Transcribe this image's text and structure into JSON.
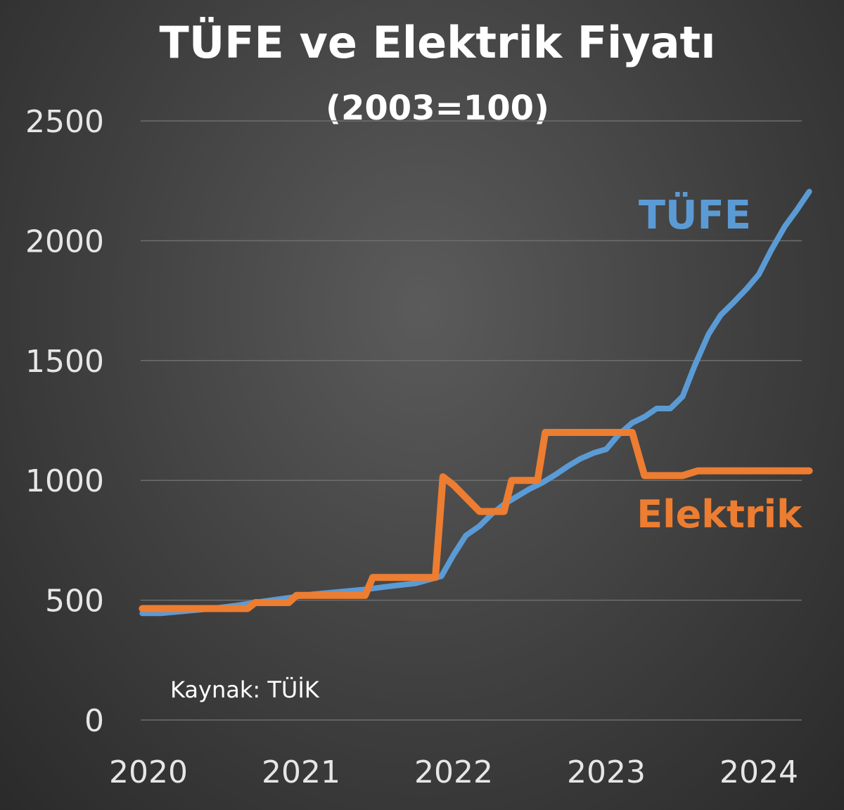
{
  "chart_data": {
    "type": "line",
    "title": "TÜFE ve Elektrik Fiyatı",
    "subtitle": "(2003=100)",
    "annotation": "Kaynak: TÜİK",
    "ylim": [
      0,
      2500
    ],
    "y_ticks": [
      "0",
      "500",
      "1000",
      "1500",
      "2000",
      "2500"
    ],
    "y_tick_values": [
      0,
      500,
      1000,
      1500,
      2000,
      2500
    ],
    "x_ticks": [
      "2020",
      "2021",
      "2022",
      "2023",
      "2024"
    ],
    "x_tick_values": [
      2020,
      2021,
      2022,
      2023,
      2024
    ],
    "xlim": [
      2019.98,
      2024.35
    ],
    "grid": true,
    "colors": {
      "tufe": "#5b9bd5",
      "elektrik": "#ed7d31",
      "grid": "#6e6e6e"
    },
    "series": [
      {
        "name": "TÜFE",
        "color": "#5b9bd5",
        "points": [
          [
            2019.96,
            445
          ],
          [
            2020.08,
            445
          ],
          [
            2020.25,
            455
          ],
          [
            2020.42,
            465
          ],
          [
            2020.58,
            478
          ],
          [
            2020.75,
            495
          ],
          [
            2020.92,
            510
          ],
          [
            2021.08,
            525
          ],
          [
            2021.25,
            535
          ],
          [
            2021.42,
            545
          ],
          [
            2021.58,
            558
          ],
          [
            2021.75,
            570
          ],
          [
            2021.92,
            600
          ],
          [
            2022.0,
            690
          ],
          [
            2022.08,
            770
          ],
          [
            2022.17,
            810
          ],
          [
            2022.25,
            860
          ],
          [
            2022.33,
            900
          ],
          [
            2022.42,
            935
          ],
          [
            2022.5,
            965
          ],
          [
            2022.58,
            990
          ],
          [
            2022.67,
            1025
          ],
          [
            2022.75,
            1060
          ],
          [
            2022.83,
            1090
          ],
          [
            2022.92,
            1115
          ],
          [
            2023.0,
            1130
          ],
          [
            2023.08,
            1190
          ],
          [
            2023.17,
            1240
          ],
          [
            2023.25,
            1265
          ],
          [
            2023.33,
            1300
          ],
          [
            2023.42,
            1300
          ],
          [
            2023.5,
            1350
          ],
          [
            2023.58,
            1480
          ],
          [
            2023.67,
            1610
          ],
          [
            2023.75,
            1690
          ],
          [
            2023.83,
            1740
          ],
          [
            2023.92,
            1800
          ],
          [
            2024.0,
            1860
          ],
          [
            2024.08,
            1960
          ],
          [
            2024.17,
            2060
          ],
          [
            2024.25,
            2130
          ],
          [
            2024.33,
            2205
          ]
        ]
      },
      {
        "name": "Elektrik",
        "color": "#ed7d31",
        "points": [
          [
            2019.96,
            465
          ],
          [
            2020.25,
            465
          ],
          [
            2020.65,
            465
          ],
          [
            2020.7,
            490
          ],
          [
            2020.92,
            490
          ],
          [
            2020.97,
            520
          ],
          [
            2021.42,
            520
          ],
          [
            2021.47,
            595
          ],
          [
            2021.88,
            595
          ],
          [
            2021.93,
            1015
          ],
          [
            2022.0,
            980
          ],
          [
            2022.17,
            870
          ],
          [
            2022.33,
            870
          ],
          [
            2022.38,
            1000
          ],
          [
            2022.55,
            1000
          ],
          [
            2022.6,
            1200
          ],
          [
            2023.17,
            1200
          ],
          [
            2023.25,
            1020
          ],
          [
            2023.5,
            1020
          ],
          [
            2023.6,
            1040
          ],
          [
            2024.33,
            1040
          ]
        ]
      }
    ]
  }
}
